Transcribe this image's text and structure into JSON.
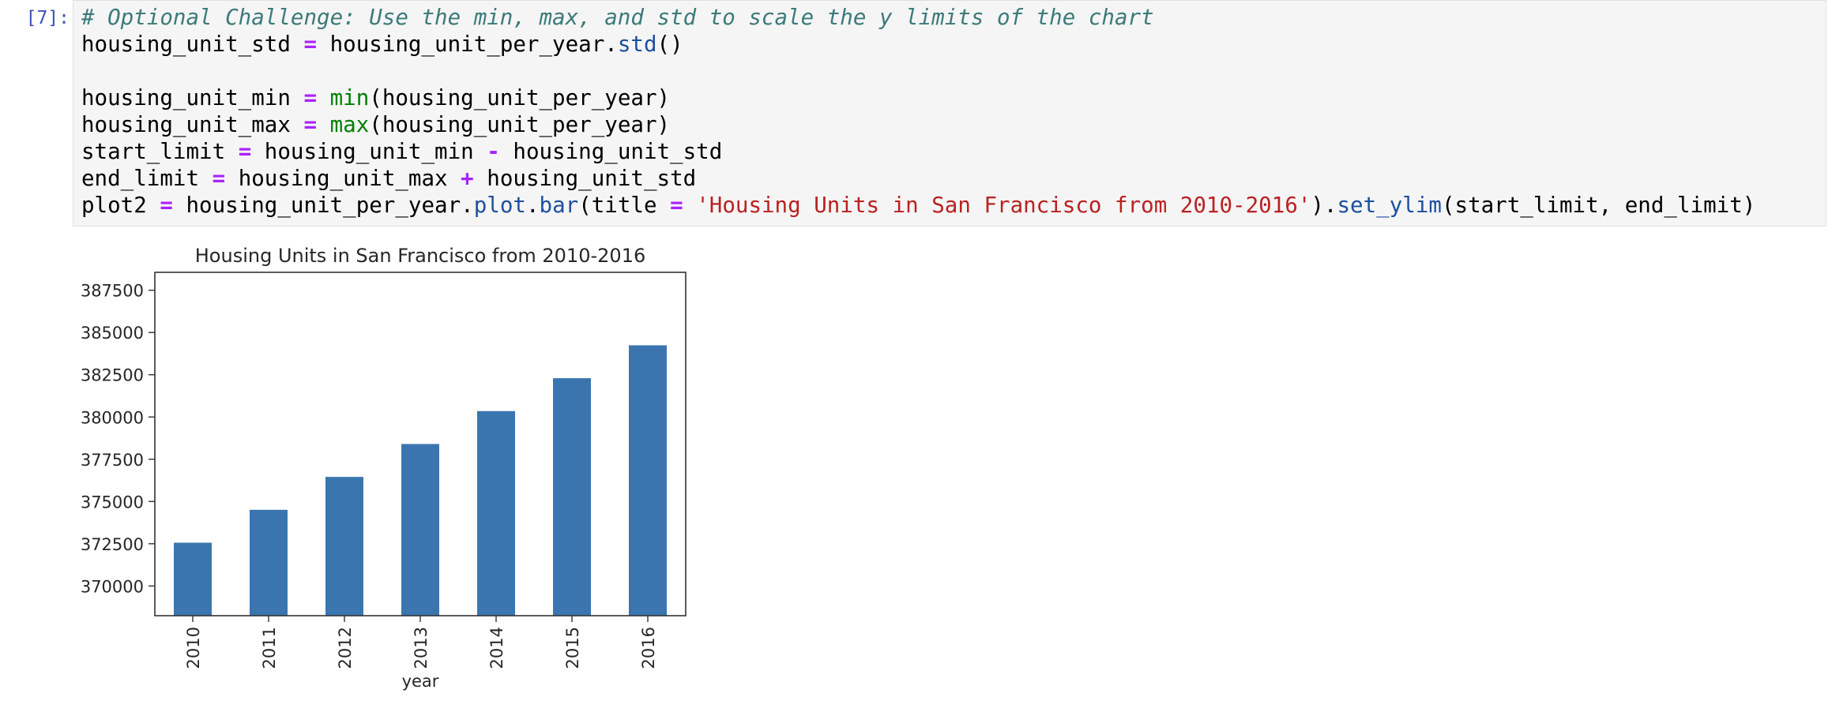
{
  "cell": {
    "prompt": "[7]:",
    "code_lines": [
      [
        {
          "t": "# Optional Challenge: Use the min, max, and std to scale the y limits of the chart",
          "c": "cm"
        }
      ],
      [
        {
          "t": "housing_unit_std "
        },
        {
          "t": "=",
          "c": "op"
        },
        {
          "t": " housing_unit_per_year."
        },
        {
          "t": "std",
          "c": "at"
        },
        {
          "t": "()"
        }
      ],
      [],
      [
        {
          "t": "housing_unit_min "
        },
        {
          "t": "=",
          "c": "op"
        },
        {
          "t": " "
        },
        {
          "t": "min",
          "c": "bi"
        },
        {
          "t": "(housing_unit_per_year)"
        }
      ],
      [
        {
          "t": "housing_unit_max "
        },
        {
          "t": "=",
          "c": "op"
        },
        {
          "t": " "
        },
        {
          "t": "max",
          "c": "bi"
        },
        {
          "t": "(housing_unit_per_year)"
        }
      ],
      [
        {
          "t": "start_limit "
        },
        {
          "t": "=",
          "c": "op"
        },
        {
          "t": " housing_unit_min "
        },
        {
          "t": "-",
          "c": "op"
        },
        {
          "t": " housing_unit_std"
        }
      ],
      [
        {
          "t": "end_limit "
        },
        {
          "t": "=",
          "c": "op"
        },
        {
          "t": " housing_unit_max "
        },
        {
          "t": "+",
          "c": "op"
        },
        {
          "t": " housing_unit_std"
        }
      ],
      [
        {
          "t": "plot2 "
        },
        {
          "t": "=",
          "c": "op"
        },
        {
          "t": " housing_unit_per_year."
        },
        {
          "t": "plot",
          "c": "at"
        },
        {
          "t": "."
        },
        {
          "t": "bar",
          "c": "at"
        },
        {
          "t": "(title "
        },
        {
          "t": "=",
          "c": "op"
        },
        {
          "t": " "
        },
        {
          "t": "'Housing Units in San Francisco from 2010-2016'",
          "c": "st"
        },
        {
          "t": ")."
        },
        {
          "t": "set_ylim",
          "c": "at"
        },
        {
          "t": "(start_limit, end_limit)"
        }
      ]
    ]
  },
  "colors": {
    "bar": "#3a75b0",
    "prompt": "#3f51b5",
    "cell_background": "#f5f5f5"
  },
  "chart_data": {
    "type": "bar",
    "title": "Housing Units in San Francisco from 2010-2016",
    "xlabel": "year",
    "ylabel": "",
    "categories": [
      "2010",
      "2011",
      "2012",
      "2013",
      "2014",
      "2015",
      "2016"
    ],
    "values": [
      372560,
      374507,
      376454,
      378401,
      380348,
      382295,
      384242
    ],
    "ylim": [
      368241,
      388560
    ],
    "yticks": [
      370000,
      372500,
      375000,
      377500,
      380000,
      382500,
      385000,
      387500
    ],
    "ytick_labels": [
      "370000",
      "372500",
      "375000",
      "377500",
      "380000",
      "382500",
      "385000",
      "387500"
    ],
    "grid": false,
    "legend": "none"
  }
}
